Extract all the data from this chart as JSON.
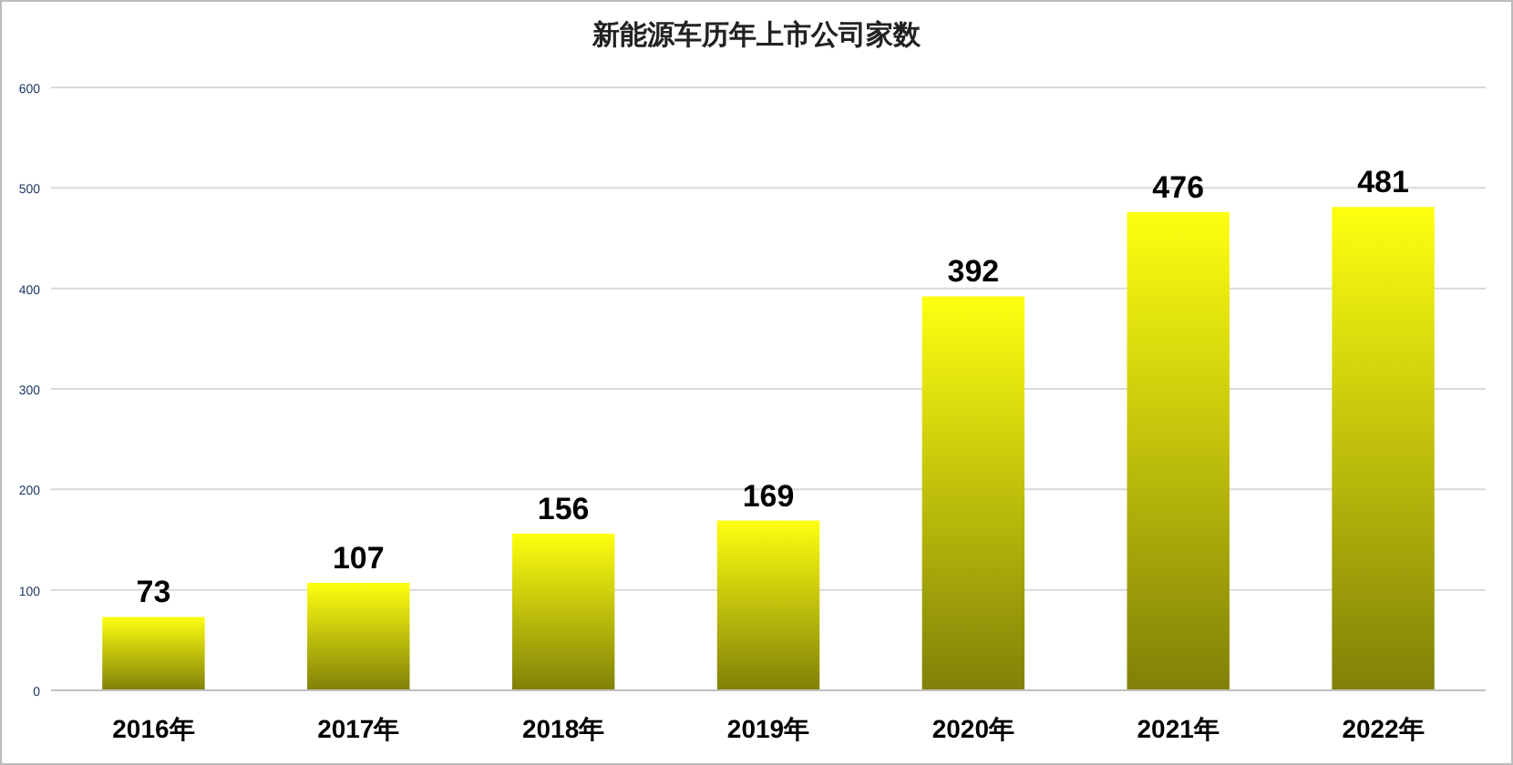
{
  "chart_data": {
    "type": "bar",
    "title": "新能源车历年上市公司家数",
    "categories": [
      "2016年",
      "2017年",
      "2018年",
      "2019年",
      "2020年",
      "2021年",
      "2022年"
    ],
    "values": [
      73,
      107,
      156,
      169,
      392,
      476,
      481
    ],
    "color": "#ffff10",
    "ylim": [
      0,
      600
    ],
    "yticks": [
      0,
      100,
      200,
      300,
      400,
      500,
      600
    ],
    "grid": "y",
    "data_labels": true
  }
}
